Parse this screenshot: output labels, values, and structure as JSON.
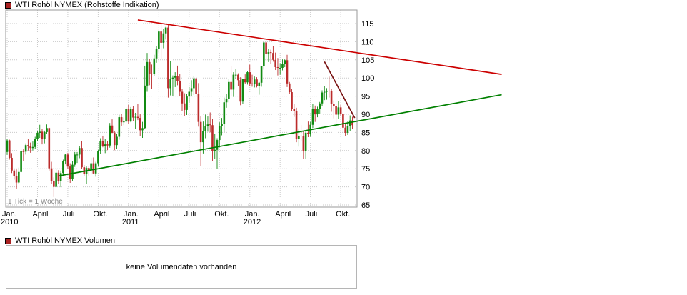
{
  "price_chart": {
    "title": "WTI Rohöl NYMEX (Rohstoffe Indikation)"
  },
  "volume_chart": {
    "title": "WTI Rohöl NYMEX Volumen",
    "empty_message": "keine Volumendaten vorhanden"
  },
  "style": {
    "background": "#ffffff",
    "icon_fill": "#aa2222",
    "icon_border": "#000000",
    "grid": "#c9c9c9",
    "plot_border": "#9a9a9a",
    "up": "#118a11",
    "down": "#bb2b2b",
    "axis_text": "#000000",
    "note_text": "#8a8a8a"
  },
  "chart_data": {
    "type": "candlestick",
    "title": "WTI Rohöl NYMEX (Rohstoffe Indikation)",
    "interval_note": "1 Tick = 1 Woche",
    "y_axis": {
      "min": 65,
      "max": 115,
      "ticks": [
        65,
        70,
        75,
        80,
        85,
        90,
        95,
        100,
        105,
        110,
        115
      ]
    },
    "x_axis": {
      "unit": "week",
      "labels": [
        {
          "week": 0,
          "text": "Jan.",
          "year": "2010"
        },
        {
          "week": 13,
          "text": "April"
        },
        {
          "week": 26,
          "text": "Juli"
        },
        {
          "week": 39,
          "text": "Okt."
        },
        {
          "week": 52,
          "text": "Jan.",
          "year": "2011"
        },
        {
          "week": 65,
          "text": "April"
        },
        {
          "week": 78,
          "text": "Juli"
        },
        {
          "week": 91,
          "text": "Okt."
        },
        {
          "week": 104,
          "text": "Jan.",
          "year": "2012"
        },
        {
          "week": 117,
          "text": "April"
        },
        {
          "week": 130,
          "text": "Juli"
        },
        {
          "week": 143,
          "text": "Okt."
        }
      ]
    },
    "trend_lines": [
      {
        "name": "descending-resistance-line",
        "color": "#cc0000",
        "from": {
          "week": 56,
          "price": 116.0
        },
        "to": {
          "week": 212,
          "price": 101.0
        }
      },
      {
        "name": "ascending-support-line",
        "color": "#008000",
        "from": {
          "week": 22,
          "price": 73.0
        },
        "to": {
          "week": 212,
          "price": 95.4
        }
      },
      {
        "name": "short-term-downtrend-line",
        "color": "#7a1414",
        "from": {
          "week": 136,
          "price": 104.5
        },
        "to": {
          "week": 149,
          "price": 89.0
        }
      }
    ],
    "candles_ohlc": [
      [
        79.6,
        83.3,
        78.8,
        82.8
      ],
      [
        82.8,
        83.0,
        77.5,
        78.0
      ],
      [
        78.0,
        79.3,
        73.8,
        74.5
      ],
      [
        74.5,
        75.0,
        72.0,
        72.9
      ],
      [
        72.9,
        74.8,
        69.5,
        71.2
      ],
      [
        71.2,
        75.3,
        70.8,
        74.1
      ],
      [
        74.1,
        80.3,
        73.9,
        79.8
      ],
      [
        79.8,
        80.5,
        77.1,
        79.7
      ],
      [
        79.7,
        82.0,
        78.9,
        81.5
      ],
      [
        81.5,
        83.1,
        80.0,
        81.2
      ],
      [
        81.2,
        82.2,
        79.4,
        80.7
      ],
      [
        80.7,
        82.5,
        80.0,
        81.0
      ],
      [
        81.0,
        83.8,
        80.4,
        83.2
      ],
      [
        83.2,
        85.3,
        82.6,
        84.9
      ],
      [
        84.9,
        87.1,
        83.5,
        85.2
      ],
      [
        85.2,
        86.0,
        81.7,
        83.2
      ],
      [
        83.2,
        85.5,
        82.0,
        85.1
      ],
      [
        85.1,
        87.2,
        84.5,
        86.2
      ],
      [
        86.2,
        86.3,
        74.5,
        75.1
      ],
      [
        75.1,
        76.9,
        70.8,
        71.6
      ],
      [
        71.6,
        72.6,
        67.2,
        70.0
      ],
      [
        70.0,
        75.1,
        69.8,
        73.9
      ],
      [
        73.9,
        74.6,
        70.9,
        71.5
      ],
      [
        71.5,
        74.5,
        69.9,
        73.8
      ],
      [
        73.8,
        77.5,
        73.3,
        77.2
      ],
      [
        77.2,
        79.0,
        76.2,
        78.9
      ],
      [
        78.9,
        79.4,
        74.9,
        75.6
      ],
      [
        75.6,
        76.5,
        71.1,
        72.1
      ],
      [
        72.1,
        77.2,
        71.5,
        76.1
      ],
      [
        76.1,
        79.6,
        75.5,
        78.9
      ],
      [
        78.9,
        79.6,
        76.6,
        78.9
      ],
      [
        78.9,
        81.3,
        77.9,
        80.7
      ],
      [
        80.7,
        82.7,
        75.0,
        75.4
      ],
      [
        75.4,
        76.0,
        73.1,
        73.5
      ],
      [
        73.5,
        75.6,
        70.8,
        75.2
      ],
      [
        75.2,
        75.6,
        73.1,
        74.6
      ],
      [
        74.6,
        78.0,
        73.4,
        76.5
      ],
      [
        76.5,
        78.1,
        73.6,
        73.7
      ],
      [
        73.7,
        76.9,
        72.8,
        76.5
      ],
      [
        76.5,
        80.2,
        75.6,
        79.9
      ],
      [
        79.9,
        83.4,
        79.1,
        82.7
      ],
      [
        82.7,
        84.1,
        80.9,
        81.3
      ],
      [
        81.3,
        83.3,
        79.3,
        81.7
      ],
      [
        81.7,
        82.6,
        80.1,
        81.4
      ],
      [
        81.4,
        87.6,
        80.8,
        86.9
      ],
      [
        86.9,
        88.6,
        84.8,
        84.9
      ],
      [
        84.9,
        85.3,
        80.1,
        81.5
      ],
      [
        81.5,
        84.5,
        80.4,
        83.8
      ],
      [
        83.8,
        89.8,
        83.0,
        89.2
      ],
      [
        89.2,
        90.1,
        86.8,
        87.8
      ],
      [
        87.8,
        89.1,
        87.0,
        88.0
      ],
      [
        88.0,
        91.9,
        87.6,
        91.4
      ],
      [
        91.4,
        92.6,
        87.3,
        88.0
      ],
      [
        88.0,
        92.0,
        87.8,
        91.5
      ],
      [
        91.5,
        92.2,
        88.1,
        89.1
      ],
      [
        89.1,
        90.4,
        85.9,
        89.3
      ],
      [
        89.3,
        92.8,
        88.4,
        89.0
      ],
      [
        89.0,
        90.0,
        83.9,
        85.6
      ],
      [
        85.6,
        87.9,
        83.5,
        86.2
      ],
      [
        86.2,
        103.4,
        85.9,
        97.9
      ],
      [
        97.9,
        106.9,
        96.2,
        104.4
      ],
      [
        104.4,
        105.2,
        98.0,
        101.2
      ],
      [
        101.2,
        103.7,
        96.9,
        101.1
      ],
      [
        101.1,
        106.4,
        100.6,
        105.4
      ],
      [
        105.4,
        108.8,
        104.2,
        108.0
      ],
      [
        108.0,
        113.2,
        107.0,
        112.8
      ],
      [
        112.8,
        114.8,
        105.3,
        109.7
      ],
      [
        109.7,
        113.5,
        108.2,
        112.3
      ],
      [
        112.3,
        114.1,
        110.6,
        113.9
      ],
      [
        113.9,
        114.8,
        94.6,
        97.2
      ],
      [
        97.2,
        104.6,
        95.2,
        99.7
      ],
      [
        99.7,
        100.7,
        95.0,
        100.1
      ],
      [
        100.1,
        101.6,
        97.5,
        100.6
      ],
      [
        100.6,
        103.4,
        98.0,
        99.2
      ],
      [
        99.2,
        101.1,
        95.1,
        96.2
      ],
      [
        96.2,
        96.9,
        90.8,
        93.0
      ],
      [
        93.0,
        95.8,
        89.6,
        91.2
      ],
      [
        91.2,
        95.6,
        89.8,
        94.9
      ],
      [
        94.9,
        97.5,
        93.2,
        96.2
      ],
      [
        96.2,
        99.4,
        94.9,
        97.2
      ],
      [
        97.2,
        100.6,
        95.3,
        99.9
      ],
      [
        99.9,
        100.2,
        94.9,
        95.7
      ],
      [
        95.7,
        98.6,
        86.6,
        87.9
      ],
      [
        87.9,
        89.4,
        75.7,
        82.3
      ],
      [
        82.3,
        88.0,
        79.2,
        85.4
      ],
      [
        85.4,
        89.9,
        83.4,
        86.8
      ],
      [
        86.8,
        89.4,
        85.2,
        87.2
      ],
      [
        87.2,
        90.5,
        85.0,
        87.0
      ],
      [
        87.0,
        88.7,
        77.1,
        79.9
      ],
      [
        79.9,
        84.5,
        77.6,
        80.2
      ],
      [
        80.2,
        83.4,
        74.9,
        82.9
      ],
      [
        82.9,
        87.8,
        80.9,
        86.8
      ],
      [
        86.8,
        89.0,
        84.2,
        87.4
      ],
      [
        87.4,
        94.6,
        85.1,
        93.3
      ],
      [
        93.3,
        95.7,
        91.8,
        94.3
      ],
      [
        94.3,
        99.7,
        93.3,
        98.9
      ],
      [
        98.9,
        103.4,
        95.0,
        96.8
      ],
      [
        96.8,
        101.6,
        94.8,
        100.9
      ],
      [
        100.9,
        102.4,
        99.7,
        100.9
      ],
      [
        100.9,
        101.3,
        97.8,
        99.4
      ],
      [
        99.4,
        100.2,
        92.5,
        93.5
      ],
      [
        93.5,
        99.8,
        92.9,
        99.7
      ],
      [
        99.7,
        101.0,
        98.3,
        98.8
      ],
      [
        98.8,
        101.8,
        98.2,
        101.6
      ],
      [
        101.6,
        103.7,
        97.7,
        98.5
      ],
      [
        98.5,
        100.9,
        97.6,
        98.3
      ],
      [
        98.3,
        100.4,
        97.4,
        99.6
      ],
      [
        99.6,
        100.2,
        97.4,
        97.8
      ],
      [
        97.8,
        98.9,
        95.4,
        98.7
      ],
      [
        98.7,
        103.1,
        97.6,
        103.2
      ],
      [
        103.2,
        109.9,
        102.3,
        109.8
      ],
      [
        109.8,
        110.6,
        104.8,
        106.7
      ],
      [
        106.7,
        108.0,
        104.4,
        107.1
      ],
      [
        107.1,
        107.8,
        103.8,
        106.9
      ],
      [
        106.9,
        108.7,
        104.5,
        105.0
      ],
      [
        105.0,
        107.0,
        102.2,
        103.0
      ],
      [
        103.0,
        105.5,
        100.7,
        102.8
      ],
      [
        102.8,
        104.1,
        100.9,
        102.8
      ],
      [
        102.8,
        105.1,
        102.1,
        103.9
      ],
      [
        103.9,
        105.1,
        103.0,
        104.9
      ],
      [
        104.9,
        106.4,
        97.5,
        98.5
      ],
      [
        98.5,
        98.9,
        95.6,
        96.1
      ],
      [
        96.1,
        96.9,
        90.9,
        91.5
      ],
      [
        91.5,
        92.9,
        89.3,
        90.9
      ],
      [
        90.9,
        91.8,
        82.3,
        83.2
      ],
      [
        83.2,
        86.1,
        81.1,
        84.1
      ],
      [
        84.1,
        87.0,
        82.6,
        84.0
      ],
      [
        84.0,
        85.4,
        77.6,
        79.8
      ],
      [
        79.8,
        85.3,
        77.7,
        84.9
      ],
      [
        84.9,
        88.0,
        83.7,
        84.5
      ],
      [
        84.5,
        87.9,
        83.8,
        87.1
      ],
      [
        87.1,
        92.9,
        86.2,
        91.4
      ],
      [
        91.4,
        92.4,
        87.9,
        90.1
      ],
      [
        90.1,
        92.1,
        89.2,
        91.4
      ],
      [
        91.4,
        93.4,
        90.1,
        93.0
      ],
      [
        93.0,
        96.6,
        92.2,
        96.0
      ],
      [
        96.0,
        97.7,
        93.9,
        96.2
      ],
      [
        96.2,
        97.2,
        94.0,
        96.5
      ],
      [
        96.5,
        100.4,
        94.6,
        96.4
      ],
      [
        96.4,
        97.0,
        90.7,
        92.9
      ],
      [
        92.9,
        93.8,
        88.9,
        92.2
      ],
      [
        92.2,
        92.8,
        87.7,
        89.9
      ],
      [
        89.9,
        93.6,
        88.8,
        91.9
      ],
      [
        91.9,
        92.6,
        89.5,
        90.1
      ],
      [
        90.1,
        90.5,
        85.0,
        86.3
      ],
      [
        86.3,
        87.4,
        84.1,
        84.9
      ],
      [
        84.9,
        88.0,
        84.3,
        86.7
      ],
      [
        86.7,
        89.7,
        85.4,
        88.3
      ],
      [
        88.3,
        89.3,
        85.9,
        87.0
      ]
    ]
  }
}
